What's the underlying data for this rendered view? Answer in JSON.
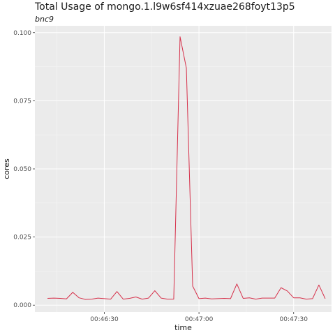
{
  "chart_data": {
    "type": "line",
    "title": "Total Usage of mongo.1.l9w6sf414xzuae268foyt13p5",
    "subtitle": "bnc9",
    "xlabel": "time",
    "ylabel": "cores",
    "xlim": [
      "00:46:08",
      "00:47:42"
    ],
    "ylim": [
      -0.0025,
      0.1025
    ],
    "x_ticks": [
      "00:46:30",
      "00:47:00",
      "00:47:30"
    ],
    "y_ticks": [
      "0.000",
      "0.025",
      "0.050",
      "0.075",
      "0.100"
    ],
    "grid": true,
    "line_color": "#d6304a",
    "panel_background": "#ebebeb",
    "series": [
      {
        "x": [
          "00:46:12",
          "00:46:14",
          "00:46:16",
          "00:46:18",
          "00:46:20",
          "00:46:22",
          "00:46:24",
          "00:46:26",
          "00:46:28",
          "00:46:30",
          "00:46:32",
          "00:46:34",
          "00:46:36",
          "00:46:38",
          "00:46:40",
          "00:46:42",
          "00:46:44",
          "00:46:46",
          "00:46:48",
          "00:46:50",
          "00:46:52",
          "00:46:54",
          "00:46:56",
          "00:46:58",
          "00:47:00",
          "00:47:02",
          "00:47:04",
          "00:47:06",
          "00:47:08",
          "00:47:10",
          "00:47:12",
          "00:47:14",
          "00:47:16",
          "00:47:18",
          "00:47:20",
          "00:47:22",
          "00:47:24",
          "00:47:26",
          "00:47:28",
          "00:47:30",
          "00:47:32",
          "00:47:34",
          "00:47:36",
          "00:47:38",
          "00:47:40"
        ],
        "values": [
          0.0025,
          0.0026,
          0.0025,
          0.0023,
          0.0047,
          0.0027,
          0.0021,
          0.0022,
          0.0026,
          0.0024,
          0.0022,
          0.005,
          0.0022,
          0.0025,
          0.003,
          0.0022,
          0.0026,
          0.0053,
          0.0026,
          0.0022,
          0.0022,
          0.0985,
          0.087,
          0.007,
          0.0024,
          0.0026,
          0.0023,
          0.0024,
          0.0025,
          0.0024,
          0.0078,
          0.0025,
          0.0027,
          0.0022,
          0.0026,
          0.0026,
          0.0026,
          0.0064,
          0.0052,
          0.0027,
          0.0027,
          0.0022,
          0.0024,
          0.0074,
          0.0024
        ]
      }
    ]
  }
}
